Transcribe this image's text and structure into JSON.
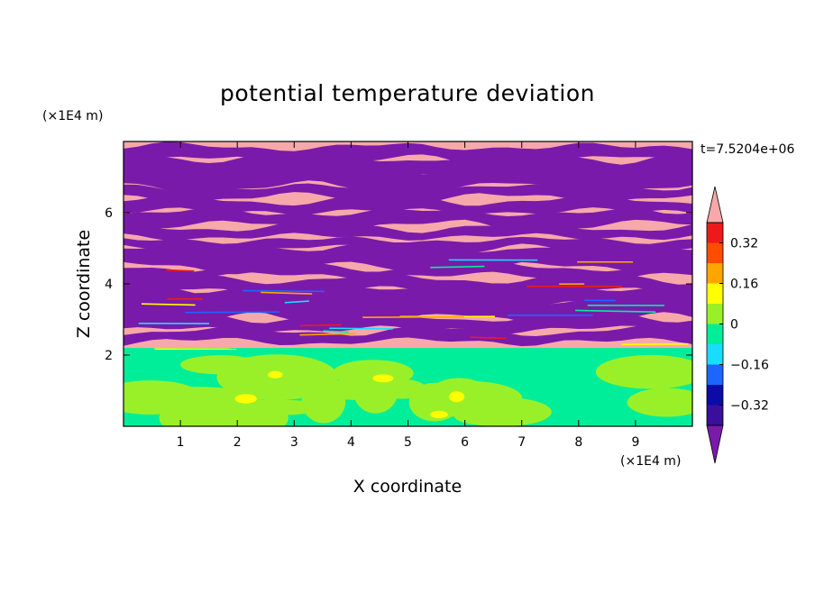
{
  "chart_data": {
    "type": "heatmap",
    "title": "potential temperature deviation",
    "xlabel": "X coordinate",
    "ylabel": "Z coordinate",
    "x_unit": "(×1E4 m)",
    "y_unit": "(×1E4 m)",
    "time_label": "t=7.5204e+06",
    "xlim": [
      0,
      10
    ],
    "ylim": [
      0,
      8
    ],
    "x_ticks": [
      1,
      2,
      3,
      4,
      5,
      6,
      7,
      8,
      9
    ],
    "y_ticks": [
      2,
      4,
      6
    ],
    "colorbar": {
      "levels": [
        -0.4,
        -0.32,
        -0.24,
        -0.16,
        -0.08,
        0,
        0.08,
        0.16,
        0.24,
        0.32,
        0.4
      ],
      "labels": [
        "0.32",
        "0.16",
        "0",
        "−0.16",
        "−0.32"
      ],
      "label_values": [
        0.32,
        0.16,
        0,
        -0.16,
        -0.32
      ],
      "colors": [
        "#3a0f9a",
        "#0b0ba8",
        "#1b66ff",
        "#19ddff",
        "#00ee9a",
        "#9af028",
        "#ffff00",
        "#ffa500",
        "#ff4c00",
        "#ee1a1a"
      ],
      "under_color": "#7a1aaa",
      "over_color": "#f7a8aa"
    },
    "fill_pattern": {
      "z_range_upper_bands": [
        2.2,
        7.9
      ],
      "band_colors": [
        "#7a1aaa",
        "#f7a8aa"
      ],
      "lower_region_colors": [
        "#00ee9a",
        "#9af028",
        "#ffff00"
      ]
    }
  }
}
